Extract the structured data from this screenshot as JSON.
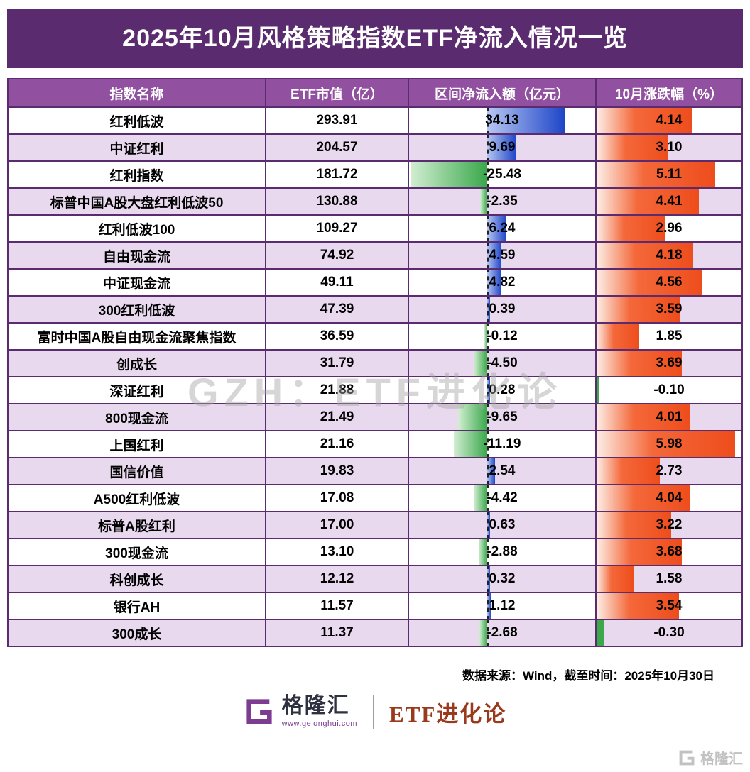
{
  "chart_data": {
    "type": "table",
    "title": "2025年10月风格策略指数ETF净流入情况一览",
    "columns": [
      "指数名称",
      "ETF市值（亿）",
      "区间净流入额（亿元）",
      "10月涨跌幅（%）"
    ],
    "rows": [
      {
        "name": "红利低波",
        "cap": 293.91,
        "inflow": 34.13,
        "change": 4.14
      },
      {
        "name": "中证红利",
        "cap": 204.57,
        "inflow": 9.69,
        "change": 3.1
      },
      {
        "name": "红利指数",
        "cap": 181.72,
        "inflow": -25.48,
        "change": 5.11
      },
      {
        "name": "标普中国A股大盘红利低波50",
        "cap": 130.88,
        "inflow": -2.35,
        "change": 4.41
      },
      {
        "name": "红利低波100",
        "cap": 109.27,
        "inflow": 6.24,
        "change": 2.96
      },
      {
        "name": "自由现金流",
        "cap": 74.92,
        "inflow": 4.59,
        "change": 4.18
      },
      {
        "name": "中证现金流",
        "cap": 49.11,
        "inflow": 4.82,
        "change": 4.56
      },
      {
        "name": "300红利低波",
        "cap": 47.39,
        "inflow": 0.39,
        "change": 3.59
      },
      {
        "name": "富时中国A股自由现金流聚焦指数",
        "cap": 36.59,
        "inflow": -0.12,
        "change": 1.85
      },
      {
        "name": "创成长",
        "cap": 31.79,
        "inflow": -4.5,
        "change": 3.69
      },
      {
        "name": "深证红利",
        "cap": 21.88,
        "inflow": 0.28,
        "change": -0.1
      },
      {
        "name": "800现金流",
        "cap": 21.49,
        "inflow": -9.65,
        "change": 4.01
      },
      {
        "name": "上国红利",
        "cap": 21.16,
        "inflow": -11.19,
        "change": 5.98
      },
      {
        "name": "国信价值",
        "cap": 19.83,
        "inflow": 2.54,
        "change": 2.73
      },
      {
        "name": "A500红利低波",
        "cap": 17.08,
        "inflow": -4.42,
        "change": 4.04
      },
      {
        "name": "标普A股红利",
        "cap": 17.0,
        "inflow": 0.63,
        "change": 3.22
      },
      {
        "name": "300现金流",
        "cap": 13.1,
        "inflow": -2.88,
        "change": 3.68
      },
      {
        "name": "科创成长",
        "cap": 12.12,
        "inflow": 0.32,
        "change": 1.58
      },
      {
        "name": "银行AH",
        "cap": 11.57,
        "inflow": 1.12,
        "change": 3.54
      },
      {
        "name": "300成长",
        "cap": 11.37,
        "inflow": -2.68,
        "change": -0.3
      }
    ],
    "layout_hints": {
      "inflow_zero_pct": 42,
      "inflow_scale_pct_per_unit": 1.62,
      "change_scale_pct_per_unit": 16
    }
  },
  "watermark": "GZH：ETF进化论",
  "footer": {
    "source": "数据来源：Wind，截至时间：2025年10月30日"
  },
  "branding": {
    "site_name": "格隆汇",
    "site_url": "www.gelonghui.com",
    "channel": "ETF进化论",
    "corner_watermark": "格隆汇"
  },
  "colors": {
    "title_bg": "#5a2b6e",
    "header_bg": "#9150a0",
    "row_alt": "#e9d9ef",
    "grid": "#5a2b6e",
    "zero_line": "#222222",
    "inflow_pos_light": "#b7c7f2",
    "inflow_pos_dark": "#1e45c8",
    "inflow_neg_light": "#d2eed2",
    "inflow_neg_dark": "#3aa84b",
    "change_pos_light": "#fdeee6",
    "change_pos_mid": "#f4683a",
    "change_pos": "#ee4d1c",
    "change_neg": "#3aa84b",
    "brand_purple": "#7b3c92",
    "brand_red": "#993a1d"
  }
}
